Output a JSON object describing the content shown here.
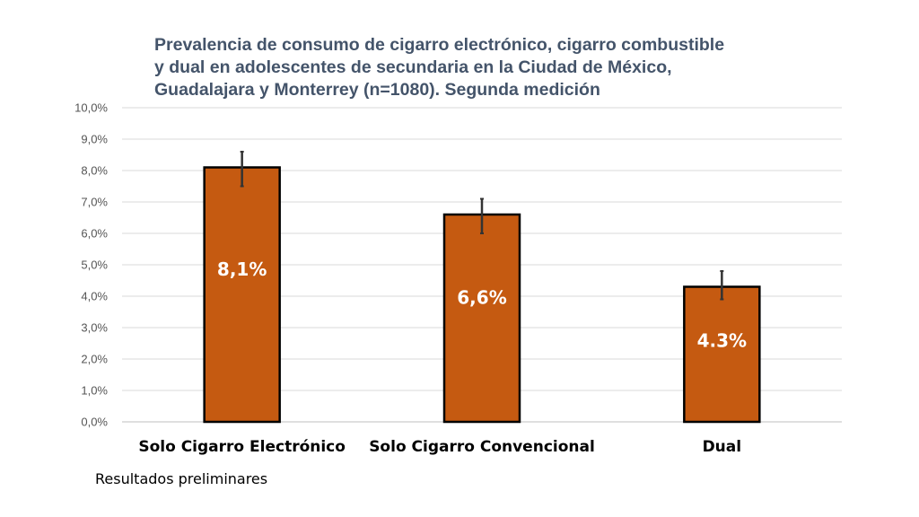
{
  "chart_data": {
    "type": "bar",
    "title_lines": [
      "Prevalencia de consumo de cigarro electrónico, cigarro combustible",
      "y dual en adolescentes de secundaria en la Ciudad de México,",
      "Guadalajara y Monterrey (n=1080). Segunda medición"
    ],
    "categories": [
      "Solo Cigarro Electrónico",
      "Solo Cigarro Convencional",
      "Dual"
    ],
    "values": [
      8.1,
      6.6,
      4.3
    ],
    "error_low": [
      7.5,
      6.0,
      3.9
    ],
    "error_high": [
      8.6,
      7.1,
      4.8
    ],
    "data_labels": [
      "8,1%",
      "6,6%",
      "4.3%"
    ],
    "yticks": [
      "0,0%",
      "1,0%",
      "2,0%",
      "3,0%",
      "4,0%",
      "5,0%",
      "6,0%",
      "7,0%",
      "8,0%",
      "9,0%",
      "10,0%"
    ],
    "ylim": [
      0,
      10
    ],
    "grid": true,
    "bar_color": "#c55a11",
    "bar_edge_color": "#000000",
    "error_color": "#333333"
  },
  "footnote": "Resultados preliminares"
}
